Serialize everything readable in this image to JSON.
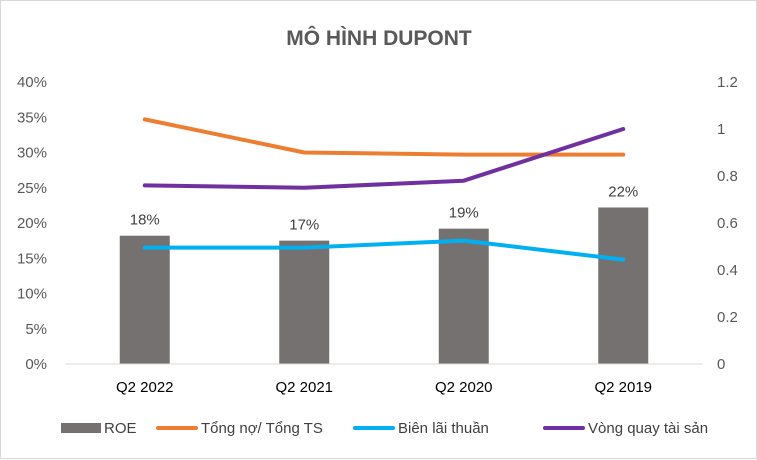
{
  "chart_data": {
    "type": "bar+line",
    "title": "MÔ HÌNH DUPONT",
    "categories": [
      "Q2 2022",
      "Q2 2021",
      "Q2 2020",
      "Q2 2019"
    ],
    "y_left": {
      "ticks": [
        "0%",
        "5%",
        "10%",
        "15%",
        "20%",
        "25%",
        "30%",
        "35%",
        "40%"
      ],
      "ylim": [
        0,
        0.4
      ],
      "step": 0.05
    },
    "y_right": {
      "ticks": [
        "0",
        "0.2",
        "0.4",
        "0.6",
        "0.8",
        "1",
        "1.2"
      ],
      "ylim": [
        0,
        1.2
      ],
      "step": 0.2
    },
    "series": [
      {
        "name": "ROE",
        "type": "bar",
        "axis": "left",
        "color": "#767171",
        "values": [
          0.182,
          0.175,
          0.192,
          0.222
        ],
        "labels": [
          "18%",
          "17%",
          "19%",
          "22%"
        ]
      },
      {
        "name": "Tổng nợ/ Tổng TS",
        "type": "line",
        "axis": "left",
        "color": "#ED7D31",
        "values": [
          0.347,
          0.3,
          0.297,
          0.297
        ]
      },
      {
        "name": "Biên lãi thuần",
        "type": "line",
        "axis": "left",
        "color": "#00B0F0",
        "values": [
          0.165,
          0.165,
          0.175,
          0.148
        ]
      },
      {
        "name": "Vòng quay tài sản",
        "type": "line",
        "axis": "right",
        "color": "#7030A0",
        "values": [
          0.76,
          0.75,
          0.78,
          1.0
        ]
      }
    ],
    "grid": false,
    "legend_position": "bottom"
  }
}
